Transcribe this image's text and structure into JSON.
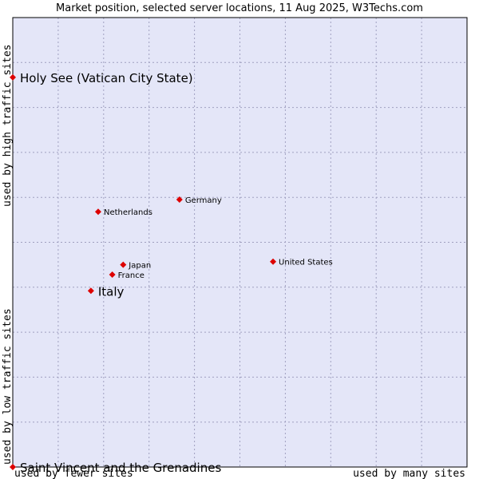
{
  "chart_data": {
    "type": "scatter",
    "title": "Market position, selected server locations, 11 Aug 2025, W3Techs.com",
    "xlabel_low": "used by fewer sites",
    "xlabel_high": "used by many sites",
    "ylabel_high": "used by high traffic sites",
    "ylabel_low": "used by low traffic sites",
    "xlim": [
      0,
      100
    ],
    "ylim": [
      0,
      100
    ],
    "grid": true,
    "colors": {
      "plot_bg": "#e4e6f8",
      "grid": "#a0a0c0",
      "marker": "#dd0000",
      "frame": "#000000"
    },
    "points": [
      {
        "label": "Holy See (Vatican City State)",
        "x": 0.0,
        "y": 86.7,
        "highlight": true
      },
      {
        "label": "Saint Vincent and the Grenadines",
        "x": 0.0,
        "y": 0.0,
        "highlight": true
      },
      {
        "label": "Italy",
        "x": 17.2,
        "y": 39.2,
        "highlight": true
      },
      {
        "label": "Germany",
        "x": 36.7,
        "y": 59.5,
        "highlight": false
      },
      {
        "label": "Netherlands",
        "x": 18.8,
        "y": 56.8,
        "highlight": false
      },
      {
        "label": "United States",
        "x": 57.3,
        "y": 45.7,
        "highlight": false
      },
      {
        "label": "Japan",
        "x": 24.3,
        "y": 45.0,
        "highlight": false
      },
      {
        "label": "France",
        "x": 21.9,
        "y": 42.8,
        "highlight": false
      }
    ]
  }
}
